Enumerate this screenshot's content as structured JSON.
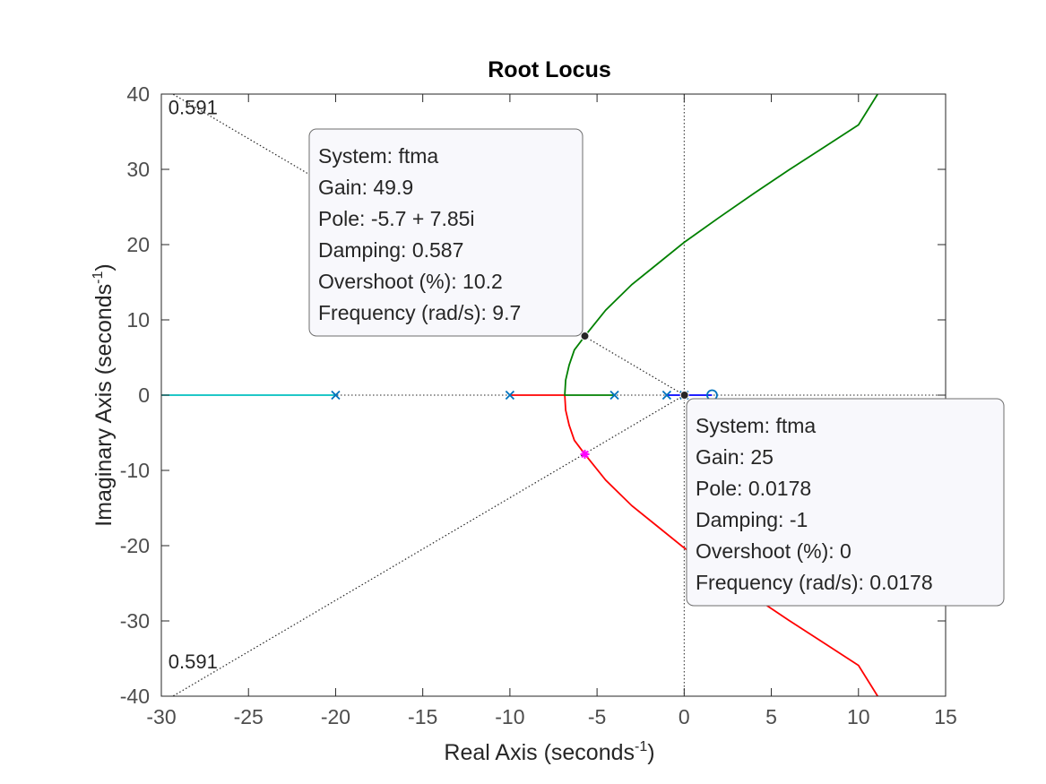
{
  "chart_data": {
    "type": "line",
    "title": "Root Locus",
    "xlabel": "Real Axis (seconds",
    "xlabel_sup": "-1",
    "xlabel_close": ")",
    "ylabel": "Imaginary Axis (seconds",
    "ylabel_sup": "-1",
    "ylabel_close": ")",
    "xlim": [
      -30,
      15
    ],
    "ylim": [
      -40,
      40
    ],
    "xticks": [
      -30,
      -25,
      -20,
      -15,
      -10,
      -5,
      0,
      5,
      10,
      15
    ],
    "yticks": [
      -40,
      -30,
      -20,
      -10,
      0,
      10,
      20,
      30,
      40
    ],
    "grid": false,
    "damping_lines": [
      {
        "label": "0.591",
        "x": [
          0,
          -30
        ],
        "y": [
          0,
          40.9
        ]
      },
      {
        "label": "0.591",
        "x": [
          0,
          -30
        ],
        "y": [
          0,
          -40.9
        ]
      }
    ],
    "series": [
      {
        "color": "#00BFBF",
        "x": [
          -20,
          -30
        ],
        "y": [
          0,
          0
        ]
      },
      {
        "color": "#FF0000",
        "x": [
          -10,
          -6.85,
          -6.8,
          -6.6,
          -6.3,
          -5.7,
          -4.5,
          -3,
          -1.5,
          0,
          2,
          4,
          6,
          8,
          10,
          11.1
        ],
        "y": [
          0,
          0,
          -2,
          -4,
          -6,
          -7.85,
          -11.3,
          -14.7,
          -17.5,
          -20.3,
          -23.6,
          -26.8,
          -29.9,
          -32.9,
          -35.9,
          -40
        ]
      },
      {
        "color": "#008000",
        "x": [
          -4,
          -6.85,
          -6.8,
          -6.6,
          -6.3,
          -5.7,
          -4.5,
          -3,
          -1.5,
          0,
          2,
          4,
          6,
          8,
          10,
          11.1
        ],
        "y": [
          0,
          0,
          2,
          4,
          6,
          7.85,
          11.3,
          14.7,
          17.5,
          20.3,
          23.6,
          26.8,
          29.9,
          32.9,
          35.9,
          40
        ]
      },
      {
        "color": "#0000FF",
        "x": [
          -1,
          1.6
        ],
        "y": [
          0,
          0
        ]
      }
    ],
    "poles": [
      {
        "x": -20,
        "y": 0
      },
      {
        "x": -10,
        "y": 0
      },
      {
        "x": -4,
        "y": 0
      },
      {
        "x": -1,
        "y": 0
      },
      {
        "x": 0,
        "y": 0
      }
    ],
    "zeros": [
      {
        "x": 1.6,
        "y": 0
      }
    ],
    "selected_poles": [
      {
        "x": -5.7,
        "y": -7.85,
        "color": "#FF00FF"
      }
    ],
    "datatips": [
      {
        "x": -5.7,
        "y": 7.85,
        "lines": [
          "System: ftma",
          "Gain: 49.9",
          "Pole: -5.7 + 7.85i",
          "Damping: 0.587",
          "Overshoot (%): 10.2",
          "Frequency (rad/s): 9.7"
        ]
      },
      {
        "x": 0.0178,
        "y": 0,
        "lines": [
          "System: ftma",
          "Gain: 25",
          "Pole: 0.0178",
          "Damping: -1",
          "Overshoot (%): 0",
          "Frequency (rad/s): 0.0178"
        ]
      }
    ]
  }
}
